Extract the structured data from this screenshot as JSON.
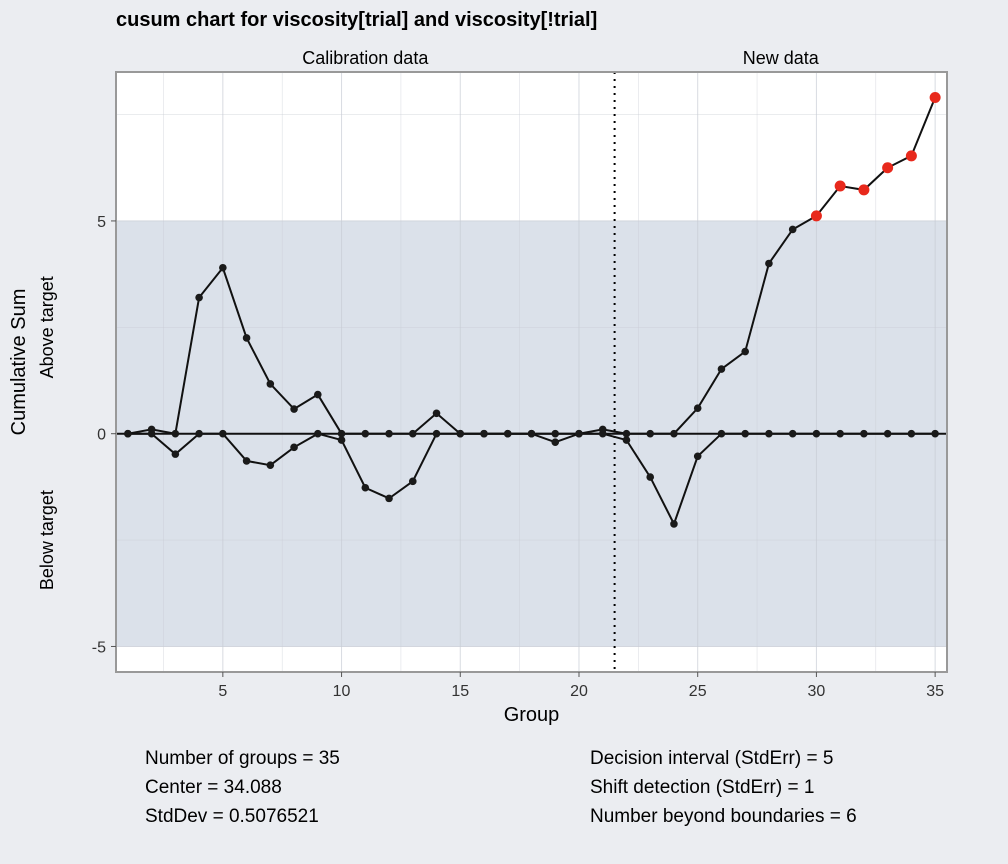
{
  "chart_data": {
    "type": "line",
    "title": "cusum chart for viscosity[trial] and viscosity[!trial]",
    "xlabel": "Group",
    "ylabel": "Cumulative Sum",
    "above_label": "Above target",
    "below_label": "Below target",
    "section_labels": [
      "Calibration data",
      "New data"
    ],
    "split_at": 21.5,
    "xlim": [
      0.5,
      35.5
    ],
    "ylim": [
      -5.6,
      8.5
    ],
    "x_ticks": [
      5,
      10,
      15,
      20,
      25,
      30,
      35
    ],
    "y_ticks": [
      -5,
      0,
      5
    ],
    "decision_interval": 5,
    "x": [
      1,
      2,
      3,
      4,
      5,
      6,
      7,
      8,
      9,
      10,
      11,
      12,
      13,
      14,
      15,
      16,
      17,
      18,
      19,
      20,
      21,
      22,
      23,
      24,
      25,
      26,
      27,
      28,
      29,
      30,
      31,
      32,
      33,
      34,
      35
    ],
    "series": [
      {
        "values": [
          0,
          0.1,
          0,
          3.2,
          3.9,
          2.25,
          1.17,
          0.58,
          0.92,
          0,
          0,
          0,
          0,
          0.48,
          0,
          0,
          0,
          0,
          0,
          0,
          0.1,
          0,
          0,
          0,
          0.6,
          1.52,
          1.93,
          4.0,
          4.8,
          5.12,
          5.82,
          5.73,
          6.25,
          6.53,
          7.9
        ]
      },
      {
        "values": [
          0,
          0,
          -0.48,
          0,
          0,
          -0.64,
          -0.74,
          -0.32,
          0,
          -0.15,
          -1.27,
          -1.52,
          -1.12,
          0,
          0,
          0,
          0,
          0,
          -0.2,
          0,
          0,
          -0.15,
          -1.02,
          -2.12,
          -0.53,
          0,
          0,
          0,
          0,
          0,
          0,
          0,
          0,
          0,
          0
        ]
      }
    ],
    "beyond_color": "#e8291c",
    "point_color": "#1a1a1a",
    "band_color": "#dbe1ea"
  },
  "stats": {
    "left": [
      "Number of groups = 35",
      "Center = 34.088",
      "StdDev = 0.5076521"
    ],
    "right": [
      "Decision interval (StdErr) = 5",
      "Shift detection (StdErr) = 1",
      "Number beyond boundaries = 6"
    ]
  }
}
